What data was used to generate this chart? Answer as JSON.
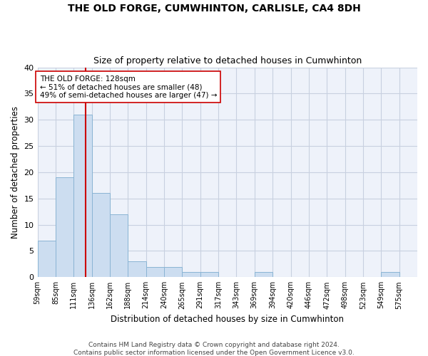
{
  "title": "THE OLD FORGE, CUMWHINTON, CARLISLE, CA4 8DH",
  "subtitle": "Size of property relative to detached houses in Cumwhinton",
  "xlabel": "Distribution of detached houses by size in Cumwhinton",
  "ylabel": "Number of detached properties",
  "bin_labels": [
    "59sqm",
    "85sqm",
    "111sqm",
    "136sqm",
    "162sqm",
    "188sqm",
    "214sqm",
    "240sqm",
    "265sqm",
    "291sqm",
    "317sqm",
    "343sqm",
    "369sqm",
    "394sqm",
    "420sqm",
    "446sqm",
    "472sqm",
    "498sqm",
    "523sqm",
    "549sqm",
    "575sqm"
  ],
  "values": [
    7,
    19,
    31,
    16,
    12,
    3,
    2,
    2,
    1,
    1,
    0,
    0,
    1,
    0,
    0,
    0,
    0,
    0,
    0,
    1,
    0
  ],
  "bar_color": "#ccddf0",
  "bar_edgecolor": "#8ab4d4",
  "vline_x": 2,
  "vline_color": "#cc0000",
  "annotation_text": "THE OLD FORGE: 128sqm\n← 51% of detached houses are smaller (48)\n49% of semi-detached houses are larger (47) →",
  "annotation_box_edgecolor": "#cc0000",
  "annotation_box_facecolor": "#ffffff",
  "ylim": [
    0,
    40
  ],
  "yticks": [
    0,
    5,
    10,
    15,
    20,
    25,
    30,
    35,
    40
  ],
  "grid_color": "#c8d0e0",
  "background_color": "#eef2fa",
  "footer1": "Contains HM Land Registry data © Crown copyright and database right 2024.",
  "footer2": "Contains public sector information licensed under the Open Government Licence v3.0.",
  "title_fontsize": 10,
  "subtitle_fontsize": 9
}
